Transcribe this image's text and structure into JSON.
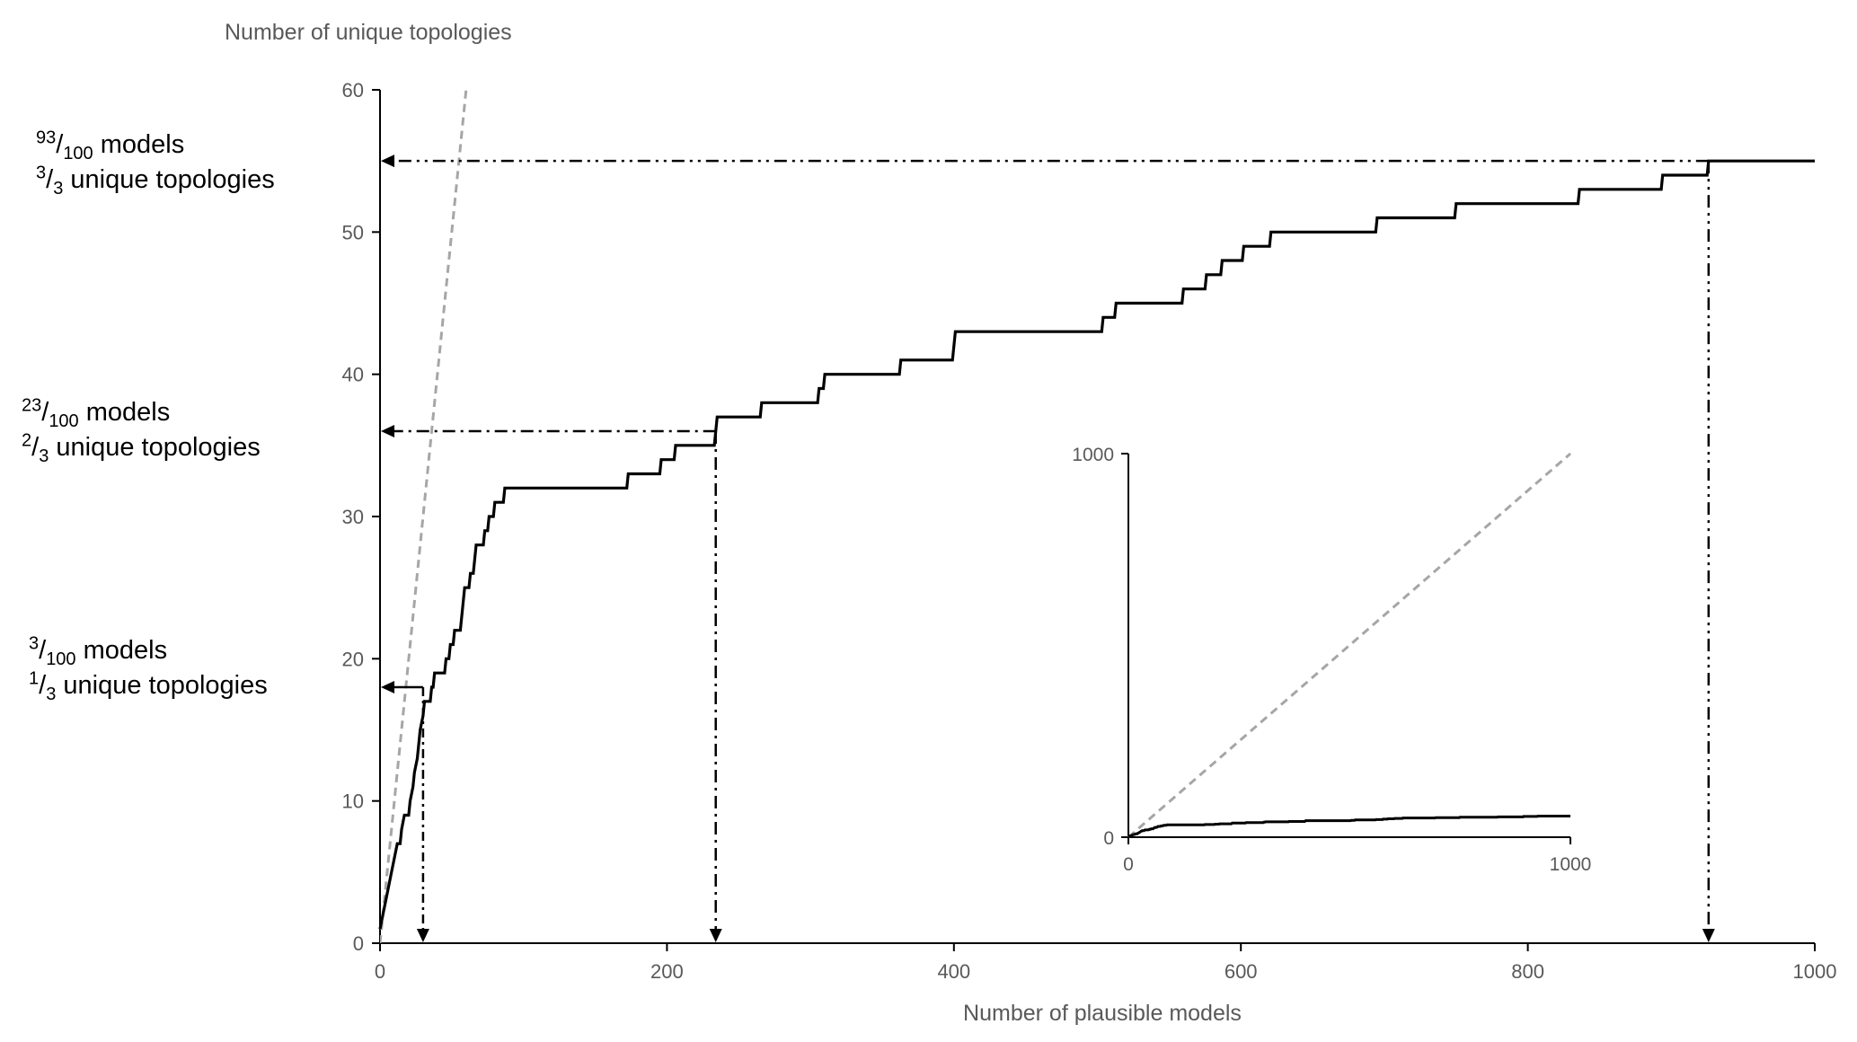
{
  "chart_data": [
    {
      "type": "line",
      "title": "",
      "xlabel": "Number of plausible models",
      "ylabel": "Number of unique topologies",
      "xlim": [
        0,
        1000
      ],
      "ylim": [
        0,
        60
      ],
      "x_ticks": [
        0,
        200,
        400,
        600,
        800,
        1000
      ],
      "y_ticks": [
        0,
        10,
        20,
        30,
        40,
        50,
        60
      ],
      "grid": false,
      "series": [
        {
          "style": "solid-black-step",
          "points": [
            [
              0,
              1
            ],
            [
              2,
              2
            ],
            [
              4,
              3
            ],
            [
              6,
              4
            ],
            [
              8,
              5
            ],
            [
              10,
              6
            ],
            [
              12,
              7
            ],
            [
              14,
              7
            ],
            [
              15,
              8
            ],
            [
              17,
              9
            ],
            [
              20,
              9
            ],
            [
              21,
              10
            ],
            [
              23,
              11
            ],
            [
              24,
              12
            ],
            [
              26,
              13
            ],
            [
              27,
              14
            ],
            [
              28,
              15
            ],
            [
              30,
              16
            ],
            [
              31,
              17
            ],
            [
              35,
              17
            ],
            [
              36,
              18
            ],
            [
              37,
              18
            ],
            [
              38,
              19
            ],
            [
              45,
              19
            ],
            [
              46,
              20
            ],
            [
              48,
              20
            ],
            [
              49,
              21
            ],
            [
              51,
              21
            ],
            [
              52,
              22
            ],
            [
              56,
              22
            ],
            [
              57,
              23
            ],
            [
              58,
              24
            ],
            [
              59,
              25
            ],
            [
              62,
              25
            ],
            [
              63,
              26
            ],
            [
              65,
              26
            ],
            [
              66,
              27
            ],
            [
              67,
              28
            ],
            [
              72,
              28
            ],
            [
              73,
              29
            ],
            [
              75,
              29
            ],
            [
              76,
              30
            ],
            [
              79,
              30
            ],
            [
              80,
              31
            ],
            [
              86,
              31
            ],
            [
              87,
              32
            ],
            [
              172,
              32
            ],
            [
              173,
              33
            ],
            [
              195,
              33
            ],
            [
              196,
              34
            ],
            [
              205,
              34
            ],
            [
              206,
              35
            ],
            [
              233,
              35
            ],
            [
              234,
              36
            ],
            [
              235,
              37
            ],
            [
              265,
              37
            ],
            [
              266,
              38
            ],
            [
              305,
              38
            ],
            [
              306,
              39
            ],
            [
              309,
              39
            ],
            [
              310,
              40
            ],
            [
              362,
              40
            ],
            [
              363,
              41
            ],
            [
              399,
              41
            ],
            [
              400,
              42
            ],
            [
              401,
              43
            ],
            [
              503,
              43
            ],
            [
              504,
              44
            ],
            [
              512,
              44
            ],
            [
              513,
              45
            ],
            [
              559,
              45
            ],
            [
              560,
              46
            ],
            [
              575,
              46
            ],
            [
              576,
              47
            ],
            [
              586,
              47
            ],
            [
              587,
              48
            ],
            [
              601,
              48
            ],
            [
              602,
              49
            ],
            [
              620,
              49
            ],
            [
              621,
              50
            ],
            [
              694,
              50
            ],
            [
              695,
              51
            ],
            [
              749,
              51
            ],
            [
              750,
              52
            ],
            [
              835,
              52
            ],
            [
              836,
              53
            ],
            [
              893,
              53
            ],
            [
              894,
              54
            ],
            [
              925,
              54
            ],
            [
              926,
              55
            ],
            [
              1000,
              55
            ]
          ]
        },
        {
          "style": "dashed-grey-diagonal",
          "points": [
            [
              0,
              0
            ],
            [
              60,
              60
            ]
          ]
        }
      ],
      "annotations": [
        {
          "x": 30,
          "y": 18,
          "sup": "3",
          "sub": "100",
          "line1_text": "models",
          "sup2": "1",
          "sub2": "3",
          "line2_text": "unique topologies"
        },
        {
          "x": 234,
          "y": 36,
          "sup": "23",
          "sub": "100",
          "line1_text": "models",
          "sup2": "2",
          "sub2": "3",
          "line2_text": "unique topologies"
        },
        {
          "x": 926,
          "y": 55,
          "sup": "93",
          "sub": "100",
          "line1_text": "models",
          "sup2": "3",
          "sub2": "3",
          "line2_text": "unique topologies"
        }
      ]
    },
    {
      "type": "line",
      "title": "",
      "xlabel": "",
      "ylabel": "",
      "xlim": [
        0,
        1000
      ],
      "ylim": [
        0,
        1000
      ],
      "x_ticks": [
        0,
        1000
      ],
      "y_ticks": [
        0,
        1000
      ],
      "grid": false,
      "placement": "inset-lower-right"
    }
  ],
  "colors": {
    "main_line": "#000000",
    "diagonal": "#a6a6a6",
    "axis": "#000000",
    "tick_text": "#595959"
  }
}
